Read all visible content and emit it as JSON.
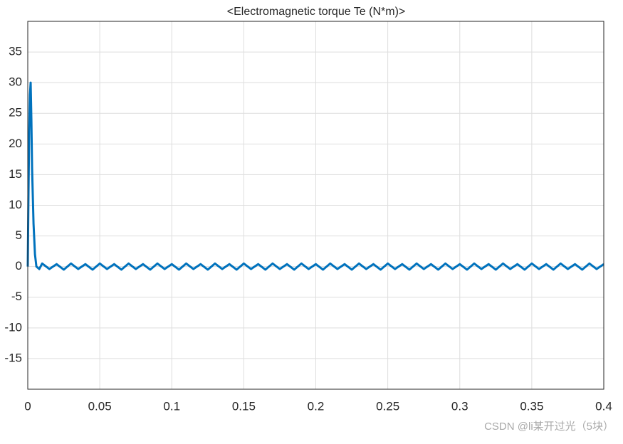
{
  "chart_data": {
    "type": "line",
    "title": "<Electromagnetic torque Te (N*m)>",
    "watermark": "CSDN @li某开过光（5块）",
    "x": [
      0,
      0.0005,
      0.001,
      0.0015,
      0.002,
      0.0025,
      0.003,
      0.004,
      0.005,
      0.006,
      0.008,
      0.01,
      0.015,
      0.02,
      0.025,
      0.03,
      0.035,
      0.04,
      0.045,
      0.05,
      0.055,
      0.06,
      0.065,
      0.07,
      0.075,
      0.08,
      0.085,
      0.09,
      0.095,
      0.1,
      0.105,
      0.11,
      0.115,
      0.12,
      0.125,
      0.13,
      0.135,
      0.14,
      0.145,
      0.15,
      0.155,
      0.16,
      0.165,
      0.17,
      0.175,
      0.18,
      0.185,
      0.19,
      0.195,
      0.2,
      0.205,
      0.21,
      0.215,
      0.22,
      0.225,
      0.23,
      0.235,
      0.24,
      0.245,
      0.25,
      0.255,
      0.26,
      0.265,
      0.27,
      0.275,
      0.28,
      0.285,
      0.29,
      0.295,
      0.3,
      0.305,
      0.31,
      0.315,
      0.32,
      0.325,
      0.33,
      0.335,
      0.34,
      0.345,
      0.35,
      0.355,
      0.36,
      0.365,
      0.37,
      0.375,
      0.38,
      0.385,
      0.39,
      0.395,
      0.4
    ],
    "series": [
      {
        "color": "#0072bd",
        "values": [
          0,
          12,
          22,
          28,
          30,
          24,
          16,
          7,
          2,
          0,
          -0.4,
          0.5,
          -0.4,
          0.4,
          -0.5,
          0.5,
          -0.4,
          0.4,
          -0.5,
          0.5,
          -0.4,
          0.4,
          -0.5,
          0.5,
          -0.4,
          0.4,
          -0.5,
          0.5,
          -0.4,
          0.4,
          -0.5,
          0.5,
          -0.4,
          0.4,
          -0.5,
          0.5,
          -0.4,
          0.4,
          -0.5,
          0.5,
          -0.4,
          0.4,
          -0.5,
          0.5,
          -0.4,
          0.4,
          -0.5,
          0.5,
          -0.4,
          0.4,
          -0.5,
          0.5,
          -0.4,
          0.4,
          -0.5,
          0.5,
          -0.4,
          0.4,
          -0.5,
          0.5,
          -0.4,
          0.4,
          -0.5,
          0.5,
          -0.4,
          0.4,
          -0.5,
          0.5,
          -0.4,
          0.4,
          -0.5,
          0.5,
          -0.4,
          0.4,
          -0.5,
          0.5,
          -0.4,
          0.4,
          -0.5,
          0.5,
          -0.4,
          0.4,
          -0.5,
          0.5,
          -0.4,
          0.4,
          -0.5,
          0.5,
          -0.4,
          0.4
        ]
      }
    ],
    "xlim": [
      0,
      0.4
    ],
    "xticks": [
      0,
      0.05,
      0.1,
      0.15,
      0.2,
      0.25,
      0.3,
      0.35,
      0.4
    ],
    "ylim": [
      -20,
      40
    ],
    "yticks": [
      -15,
      -10,
      -5,
      0,
      5,
      10,
      15,
      20,
      25,
      30,
      35
    ],
    "grid": true
  }
}
